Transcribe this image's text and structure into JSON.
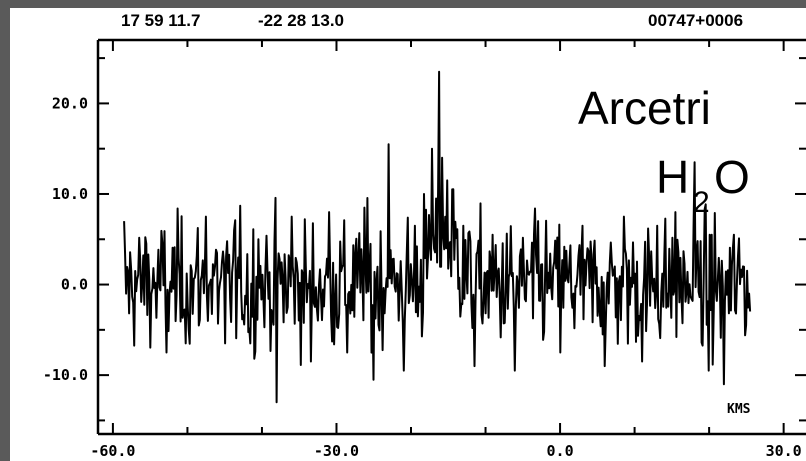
{
  "header": {
    "ra": "17 59 11.7",
    "dec": "-22 28 13.0",
    "source_id": "00747+0006"
  },
  "annotation": {
    "observatory": "Arcetri",
    "molecule_main": "H",
    "molecule_sub": "2",
    "molecule_tail": "O"
  },
  "chart_data": {
    "type": "line",
    "title": "",
    "xlabel": "KMS",
    "ylabel": "",
    "xlim": [
      -62,
      33
    ],
    "ylim": [
      -16.5,
      27
    ],
    "xticks": [
      -60,
      -30,
      0,
      30
    ],
    "xtick_labels": [
      "-60.0",
      "-30.0",
      "0.0",
      "30.0"
    ],
    "yticks": [
      -10,
      0,
      10,
      20
    ],
    "ytick_labels": [
      "-10.0",
      "0.0",
      "10.0",
      "20.0"
    ],
    "grid": false,
    "colors": {
      "line": "#000000",
      "background": "#ffffff",
      "frame": "#5a5a5a"
    },
    "noise_rms": 3.5,
    "noise_baseline": 0.0,
    "x_range_data": [
      -58.5,
      25.5
    ],
    "series": [
      {
        "x": [
          -58.5,
          -55.5,
          -52.8,
          -50.2,
          -47.5,
          -45.0,
          -43.8,
          -41.5,
          -40.5,
          -38.0,
          -36.0,
          -33.5,
          -31.0,
          -28.5,
          -26.2,
          -25.0,
          -23.0,
          -21.0,
          -19.5,
          -18.2,
          -17.2,
          -16.7,
          -16.2,
          -15.8,
          -15.2,
          -14.5,
          -13.0,
          -11.5,
          -9.0,
          -6.0,
          -3.0,
          0.0,
          3.0,
          6.0,
          8.5,
          11.0,
          13.0,
          15.5,
          18.0,
          20.0,
          22.0,
          24.5
        ],
        "values": [
          7.0,
          4.5,
          -7.5,
          -6.5,
          7.5,
          -6.5,
          6.0,
          -6.5,
          5.0,
          -13.0,
          7.5,
          -8.5,
          8.0,
          -7.5,
          8.5,
          -10.5,
          15.5,
          -9.5,
          6.5,
          10.0,
          15.0,
          9.5,
          23.5,
          14.0,
          11.5,
          10.5,
          6.5,
          -9.0,
          5.5,
          -9.5,
          7.0,
          -7.5,
          6.5,
          -9.0,
          7.5,
          -8.5,
          6.5,
          8.0,
          13.5,
          -9.5,
          -11.0,
          2.0
        ]
      }
    ]
  }
}
